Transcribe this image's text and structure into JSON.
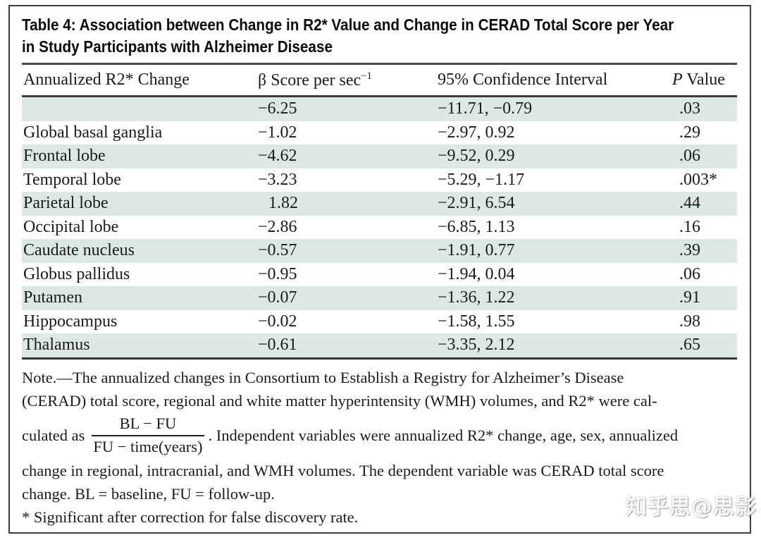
{
  "title": {
    "line1": "Table 4: Association between Change in R2* Value and Change in CERAD Total Score per Year",
    "line2": "in Study Participants with Alzheimer Disease"
  },
  "table": {
    "col1_header": "Annualized R2* Change",
    "col2_header_main": "β Score per sec",
    "col2_header_sup": "−1",
    "col3_header": "95% Confidence Interval",
    "col4_header_italic": "P",
    "col4_header_rest": " Value",
    "rows": [
      {
        "label": "",
        "beta": "−6.25",
        "ci": "−11.71, −0.79",
        "p": ".03"
      },
      {
        "label": "Global basal ganglia",
        "beta": "−1.02",
        "ci": "−2.97, 0.92",
        "p": ".29"
      },
      {
        "label": "Frontal lobe",
        "beta": "−4.62",
        "ci": "−9.52, 0.29",
        "p": ".06"
      },
      {
        "label": "Temporal lobe",
        "beta": "−3.23",
        "ci": "−5.29, −1.17",
        "p": ".003*"
      },
      {
        "label": "Parietal lobe",
        "beta": "1.82",
        "ci": "−2.91, 6.54",
        "p": ".44"
      },
      {
        "label": "Occipital lobe",
        "beta": "−2.86",
        "ci": "−6.85, 1.13",
        "p": ".16"
      },
      {
        "label": "Caudate nucleus",
        "beta": "−0.57",
        "ci": "−1.91, 0.77",
        "p": ".39"
      },
      {
        "label": "Globus pallidus",
        "beta": "−0.95",
        "ci": "−1.94, 0.04",
        "p": ".06"
      },
      {
        "label": "Putamen",
        "beta": "−0.07",
        "ci": "−1.36, 1.22",
        "p": ".91"
      },
      {
        "label": "Hippocampus",
        "beta": "−0.02",
        "ci": "−1.58, 1.55",
        "p": ".98"
      },
      {
        "label": "Thalamus",
        "beta": "−0.61",
        "ci": "−3.35, 2.12",
        "p": ".65"
      }
    ]
  },
  "note": {
    "line1": "Note.—The annualized changes in Consortium to Establish a Registry for Alzheimer’s Disease",
    "line2": "(CERAD) total score, regional and white matter hyperintensity (WMH) volumes, and R2* were cal-",
    "line3_pre": "culated as",
    "frac_numerator": "BL − FU",
    "frac_denominator": "FU − time(years)",
    "line3_post": ". Independent variables were annualized R2* change, age, sex, annualized",
    "line4": "change in regional, intracranial, and WMH volumes. The dependent variable was CERAD total score",
    "line5": "change. BL = baseline, FU = follow-up.",
    "footnote": "* Significant after correction for false discovery rate."
  },
  "watermark": "知乎思@思影",
  "colors": {
    "row_shade": "#dce8e2",
    "rule_dark": "#3a3a3a",
    "frame_border": "#3e3e3e",
    "text": "#1b1b1b"
  }
}
